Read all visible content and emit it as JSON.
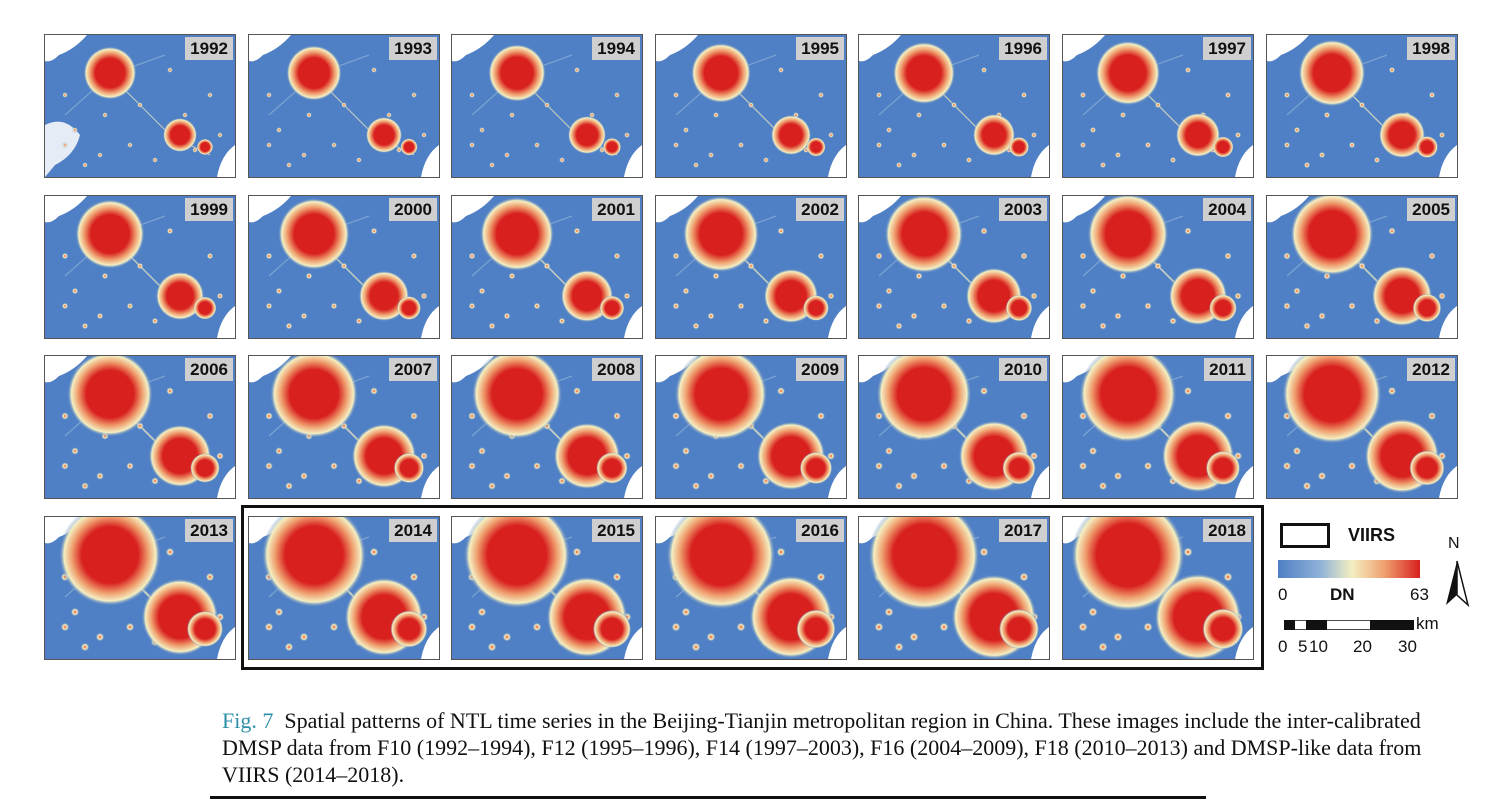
{
  "figure": {
    "panels": [
      {
        "year": "1992"
      },
      {
        "year": "1993"
      },
      {
        "year": "1994"
      },
      {
        "year": "1995"
      },
      {
        "year": "1996"
      },
      {
        "year": "1997"
      },
      {
        "year": "1998"
      },
      {
        "year": "1999"
      },
      {
        "year": "2000"
      },
      {
        "year": "2001"
      },
      {
        "year": "2002"
      },
      {
        "year": "2003"
      },
      {
        "year": "2004"
      },
      {
        "year": "2005"
      },
      {
        "year": "2006"
      },
      {
        "year": "2007"
      },
      {
        "year": "2008"
      },
      {
        "year": "2009"
      },
      {
        "year": "2010"
      },
      {
        "year": "2011"
      },
      {
        "year": "2012"
      },
      {
        "year": "2013"
      },
      {
        "year": "2014"
      },
      {
        "year": "2015"
      },
      {
        "year": "2016"
      },
      {
        "year": "2017"
      },
      {
        "year": "2018"
      }
    ],
    "legend": {
      "box_label": "VIIRS",
      "colorbar_min": "0",
      "colorbar_label": "DN",
      "colorbar_max": "63",
      "north": "N",
      "scale_unit": "km",
      "scale_ticks": [
        "0",
        "5",
        "10",
        "20",
        "30"
      ]
    },
    "colors": {
      "background": "#4f7fc4",
      "low": "#8fb2d8",
      "mid": "#f4efc2",
      "high": "#d8201e"
    }
  },
  "caption": {
    "label": "Fig. 7",
    "text": "Spatial patterns of NTL time series in the Beijing-Tianjin metropolitan region in China. These images include the inter-calibrated DMSP data from F10 (1992–1994), F12 (1995–1996), F14 (1997–2003), F16 (2004–2009), F18 (2010–2013) and DMSP-like data from VIIRS (2014–2018)."
  }
}
